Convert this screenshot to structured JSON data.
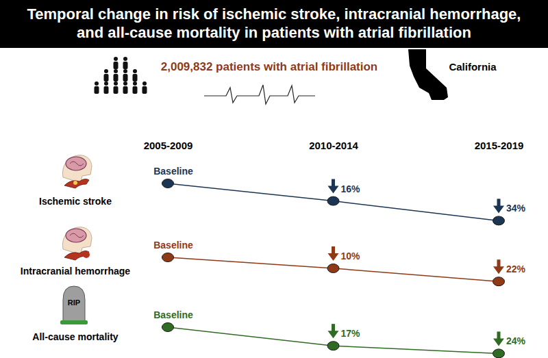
{
  "chart_data": {
    "type": "line",
    "title": "Temporal change in risk of ischemic stroke, intracranial hemorrhage,\nand all-cause mortality in patients with atrial fibrillation",
    "subtitle": "2,009,832 patients with atrial fibrillation",
    "annotations": [
      {
        "text": "California"
      },
      {
        "text": "RIP"
      }
    ],
    "categories": [
      "2005-2009",
      "2010-2014",
      "2015-2019"
    ],
    "ylim": [
      0,
      35
    ],
    "tick_labels": "x",
    "data_labels": true,
    "marker": "circle",
    "series": [
      {
        "name": "Ischemic stroke",
        "color": "#1b3553",
        "values": [
          0,
          16,
          34
        ],
        "value_labels": [
          "Baseline",
          "16%",
          "34%"
        ]
      },
      {
        "name": "Intracranial hemorrhage",
        "color": "#8e3a17",
        "values": [
          0,
          10,
          22
        ],
        "value_labels": [
          "Baseline",
          "10%",
          "22%"
        ]
      },
      {
        "name": "All-cause mortality",
        "color": "#2f6b22",
        "values": [
          0,
          17,
          24
        ],
        "value_labels": [
          "Baseline",
          "17%",
          "24%"
        ]
      }
    ]
  }
}
